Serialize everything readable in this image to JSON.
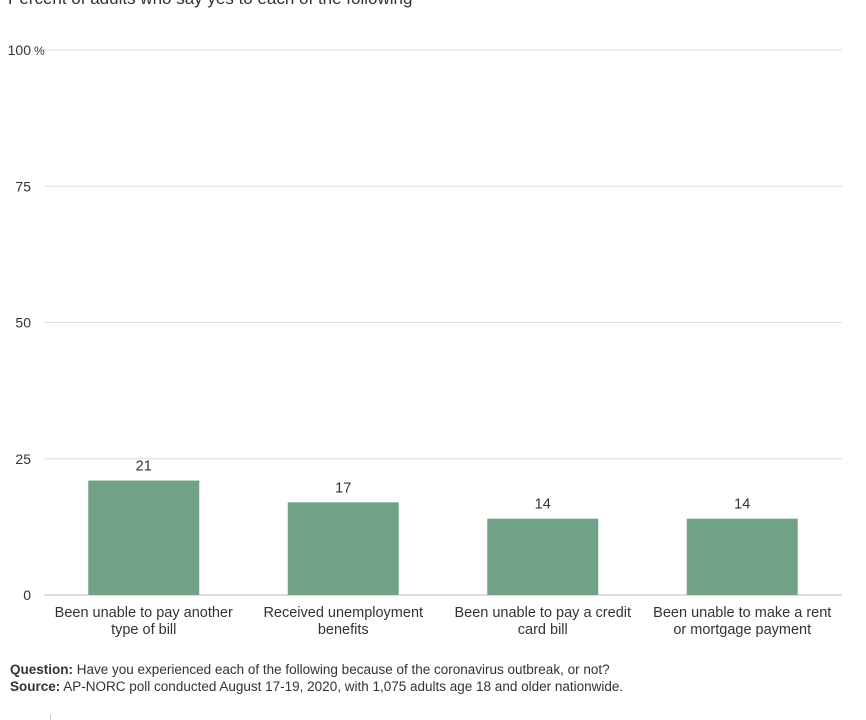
{
  "subtitle": "Percent of adults who say yes to each of the following",
  "chart_data": {
    "type": "bar",
    "title": "",
    "subtitle": "Percent of adults who say yes to each of the following",
    "categories": [
      "Been unable to pay another type of bill",
      "Received unemployment benefits",
      "Been unable to pay a credit card bill",
      "Been unable to make a rent or mortgage payment"
    ],
    "values": [
      21,
      17,
      14,
      14
    ],
    "data_labels": [
      "21",
      "17",
      "14",
      "14"
    ],
    "yticks": [
      0,
      25,
      50,
      75,
      100
    ],
    "ytick_labels": [
      "0",
      "25",
      "50",
      "75",
      "100"
    ],
    "y_unit": "%",
    "ylim": [
      0,
      100
    ],
    "xlabel": "",
    "ylabel": "",
    "grid": true,
    "bar_color": "#71a287"
  },
  "footer": {
    "question_label": "Question:",
    "question_text": "Have you experienced each of the following because of the coronavirus outbreak, or not?",
    "source_label": "Source:",
    "source_text": "AP-NORC poll conducted August 17-19, 2020, with 1,075 adults age 18 and older nationwide."
  },
  "colors": {
    "bar": "#71a287",
    "grid": "#dddddd",
    "text": "#333333"
  }
}
